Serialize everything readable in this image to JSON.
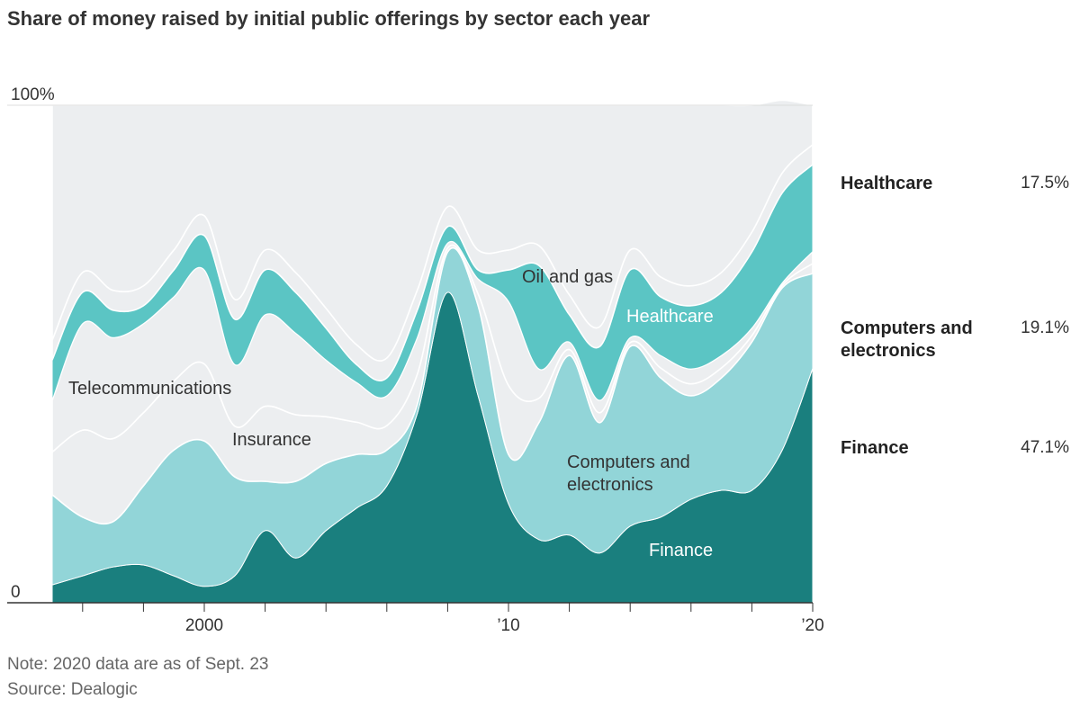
{
  "chart_data": {
    "type": "stacked_area",
    "title": "Share of money raised by initial public offerings by sector each year",
    "notes": [
      "Note: 2020 data are as of Sept. 23",
      "Source: Dealogic"
    ],
    "x": [
      1995,
      1996,
      1997,
      1998,
      1999,
      2000,
      2001,
      2002,
      2003,
      2004,
      2005,
      2006,
      2007,
      2008,
      2009,
      2010,
      2011,
      2012,
      2013,
      2014,
      2015,
      2016,
      2017,
      2018,
      2019,
      2020
    ],
    "xlim": [
      1995,
      2020
    ],
    "xticks": [
      2000,
      {
        "value": 2010,
        "label": "’10"
      },
      {
        "value": 2020,
        "label": "’20"
      }
    ],
    "xminor_ticks": [
      1996,
      1998,
      2002,
      2004,
      2006,
      2008,
      2012,
      2014,
      2016,
      2018
    ],
    "ylim": [
      0,
      100
    ],
    "yticks": [
      0,
      {
        "value": 100,
        "label": "100%"
      }
    ],
    "series": [
      {
        "name": "Finance",
        "color": "#1a7f7e",
        "values": [
          3.6,
          5.4,
          7.2,
          7.6,
          5.4,
          3.3,
          5.4,
          14.5,
          9,
          14.5,
          19,
          23.5,
          38,
          62.4,
          41.6,
          19.9,
          12.7,
          13.6,
          10,
          15.4,
          17.2,
          20.8,
          22.6,
          22.6,
          30.7,
          47.1
        ],
        "value_labels": [
          null,
          null,
          null,
          null,
          null,
          null,
          null,
          null,
          null,
          null,
          null,
          null,
          null,
          null,
          null,
          null,
          null,
          null,
          null,
          null,
          null,
          null,
          null,
          null,
          null,
          "47.1%"
        ]
      },
      {
        "name": "Computers and electronics",
        "color": "#92d5d8",
        "values": [
          18.1,
          11.8,
          9.1,
          15.9,
          25.3,
          29.2,
          19.9,
          9.9,
          15.4,
          13.5,
          10.8,
          7.2,
          1.8,
          8.1,
          18.1,
          9.9,
          23.5,
          36.1,
          26.2,
          36.1,
          28,
          20.8,
          22.6,
          29.8,
          32.6,
          19.1
        ],
        "value_labels": [
          null,
          null,
          null,
          null,
          null,
          null,
          null,
          null,
          null,
          null,
          null,
          null,
          null,
          null,
          null,
          null,
          null,
          null,
          null,
          null,
          null,
          null,
          null,
          null,
          null,
          "19.1%"
        ]
      },
      {
        "name": "Insurance",
        "color": "#eceef0",
        "values": [
          8.6,
          17.5,
          16.7,
          14.7,
          13.9,
          15.5,
          10.2,
          15.1,
          13.4,
          9.4,
          6.5,
          4.9,
          6.1,
          0.8,
          2.4,
          13.9,
          4.9,
          1.2,
          2.0,
          0.8,
          2.0,
          2.4,
          2.0,
          1.3,
          0.5,
          2.0
        ]
      },
      {
        "name": "Telecommunications",
        "color": "#eceef0",
        "values": [
          10.4,
          21.4,
          20.3,
          17.9,
          16.9,
          18.9,
          12.4,
          18.4,
          16.4,
          11.4,
          8.0,
          6.0,
          7.4,
          1.0,
          3.0,
          16.9,
          5.9,
          1.5,
          2.5,
          1.0,
          2.5,
          3.0,
          2.5,
          1.5,
          0.5,
          2.4
        ]
      },
      {
        "name": "Healthcare",
        "color": "#5bc5c4",
        "values": [
          8.1,
          6.3,
          5.5,
          3.6,
          5.4,
          6.9,
          9.1,
          9,
          8.2,
          6.4,
          3.6,
          3.6,
          5.5,
          3.3,
          1.8,
          6.3,
          20.8,
          5.5,
          10.8,
          13.6,
          11.8,
          12.7,
          12.7,
          15.3,
          18.1,
          17.5
        ],
        "value_labels": [
          null,
          null,
          null,
          null,
          null,
          null,
          null,
          null,
          null,
          null,
          null,
          null,
          null,
          null,
          null,
          null,
          null,
          null,
          null,
          null,
          null,
          null,
          null,
          null,
          null,
          "17.5%"
        ]
      },
      {
        "name": "Oil and gas",
        "color": "#eceef0",
        "values": [
          4,
          4,
          4,
          4,
          4,
          4,
          4,
          4,
          4,
          4,
          4,
          4,
          4,
          4,
          4,
          4,
          4,
          4,
          4,
          4,
          4,
          4,
          4,
          4,
          4,
          4
        ]
      },
      {
        "color": "#eceef0",
        "values": [
          47.2,
          33.6,
          37.2,
          36.3,
          29.1,
          22.2,
          39,
          29.1,
          33.6,
          40.8,
          48.1,
          50.8,
          37.2,
          20.4,
          29.1,
          29.1,
          28.2,
          38.1,
          44.5,
          29.1,
          34.5,
          36.3,
          33.6,
          25.5,
          14.6,
          7.9
        ]
      }
    ]
  }
}
